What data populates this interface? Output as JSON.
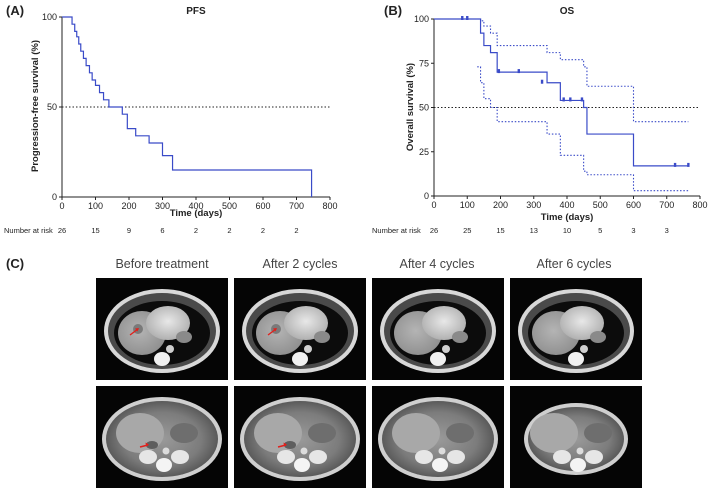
{
  "figure": {
    "panel_labels": [
      "(A)",
      "(B)",
      "(C)"
    ]
  },
  "chart_data": [
    {
      "type": "line",
      "panel": "(A)",
      "title": "PFS",
      "xlabel": "Time (days)",
      "ylabel": "Progression-free survival (%)",
      "xlim": [
        0,
        800
      ],
      "ylim": [
        0,
        100
      ],
      "x_ticks": [
        0,
        100,
        200,
        300,
        400,
        500,
        600,
        700,
        800
      ],
      "y_ticks": [
        0,
        50,
        100
      ],
      "reference_line": 50,
      "grid": false,
      "color": "#3a4bc8",
      "series": [
        {
          "x": [
            0,
            25,
            30,
            38,
            44,
            50,
            56,
            64,
            72,
            82,
            90,
            100,
            112,
            124,
            140,
            160,
            180,
            195,
            220,
            260,
            300,
            330,
            745,
            745
          ],
          "y": [
            100,
            100,
            96,
            92,
            89,
            85,
            81,
            77,
            73,
            69,
            65,
            62,
            58,
            54,
            50,
            50,
            46,
            38,
            34,
            30,
            23,
            15,
            15,
            0
          ]
        }
      ],
      "risk_table": {
        "label": "Number at risk",
        "x": [
          0,
          100,
          200,
          300,
          400,
          500,
          600,
          700
        ],
        "values": [
          26,
          15,
          9,
          6,
          2,
          2,
          2,
          2
        ]
      }
    },
    {
      "type": "line",
      "panel": "(B)",
      "title": "OS",
      "xlabel": "Time (days)",
      "ylabel": "Overall survival (%)",
      "xlim": [
        0,
        800
      ],
      "ylim": [
        0,
        100
      ],
      "x_ticks": [
        0,
        100,
        200,
        300,
        400,
        500,
        600,
        700,
        800
      ],
      "y_ticks": [
        0,
        25,
        50,
        75,
        100
      ],
      "reference_line": 50,
      "grid": false,
      "color": "#3a4bc8",
      "series": [
        {
          "style": "solid",
          "x": [
            0,
            130,
            140,
            150,
            170,
            190,
            340,
            380,
            450,
            460,
            590,
            600,
            765
          ],
          "y": [
            100,
            100,
            92,
            85,
            81,
            70,
            64,
            54,
            50,
            35,
            35,
            17,
            17
          ],
          "censor_x": [
            85,
            100,
            195,
            255,
            325,
            390,
            410,
            445,
            725,
            765
          ],
          "censor_y": [
            100,
            100,
            70,
            70,
            64,
            54,
            54,
            54,
            17,
            17
          ]
        },
        {
          "style": "dotted",
          "x": [
            0,
            130,
            140,
            150,
            170,
            190,
            340,
            380,
            450,
            460,
            590,
            600,
            765
          ],
          "y": [
            100,
            100,
            99,
            96,
            92,
            85,
            81,
            77,
            73,
            62,
            62,
            42,
            42
          ]
        },
        {
          "style": "dotted",
          "x": [
            130,
            140,
            150,
            170,
            190,
            340,
            380,
            450,
            460,
            590,
            600,
            765
          ],
          "y": [
            73,
            64,
            55,
            50,
            42,
            35,
            23,
            14,
            12,
            12,
            3,
            3
          ]
        }
      ],
      "risk_table": {
        "label": "Number at risk",
        "x": [
          0,
          100,
          200,
          300,
          400,
          500,
          600,
          700
        ],
        "values": [
          26,
          25,
          15,
          13,
          10,
          5,
          3,
          3
        ]
      }
    }
  ],
  "ct_panel": {
    "columns": [
      "Before treatment",
      "After 2 cycles",
      "After 4 cycles",
      "After 6 cycles"
    ],
    "arrow_color": "#e0201c"
  }
}
